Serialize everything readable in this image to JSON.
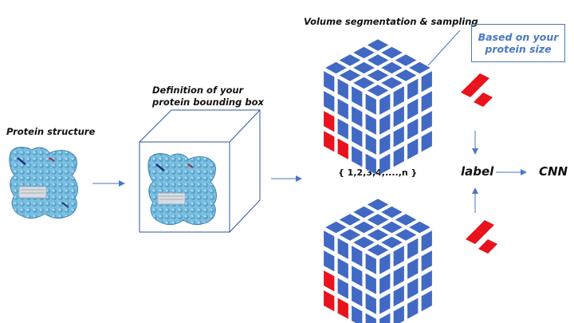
{
  "labels": {
    "protein_structure": "Protein structure",
    "bounding_box_line1": "Definition of your",
    "bounding_box_line2": "protein bounding box",
    "segmentation_title": "Volume segmentation & sampling",
    "callout_line1": "Based on your",
    "callout_line2": "protein size",
    "sequence": "{ 1,2,3,4,....,n }",
    "label_node": "label",
    "cnn_node": "CNN"
  },
  "colors": {
    "voxel_blue": "#4169c4",
    "voxel_red": "#e8131c",
    "arrow": "#4a77c4",
    "protein_blue": "#6fb3d6",
    "protein_dark": "#3f86b4",
    "callout": "#4a77c4"
  },
  "icons": {
    "protein": "protein-surface-icon",
    "arrow": "arrow-right-icon"
  }
}
